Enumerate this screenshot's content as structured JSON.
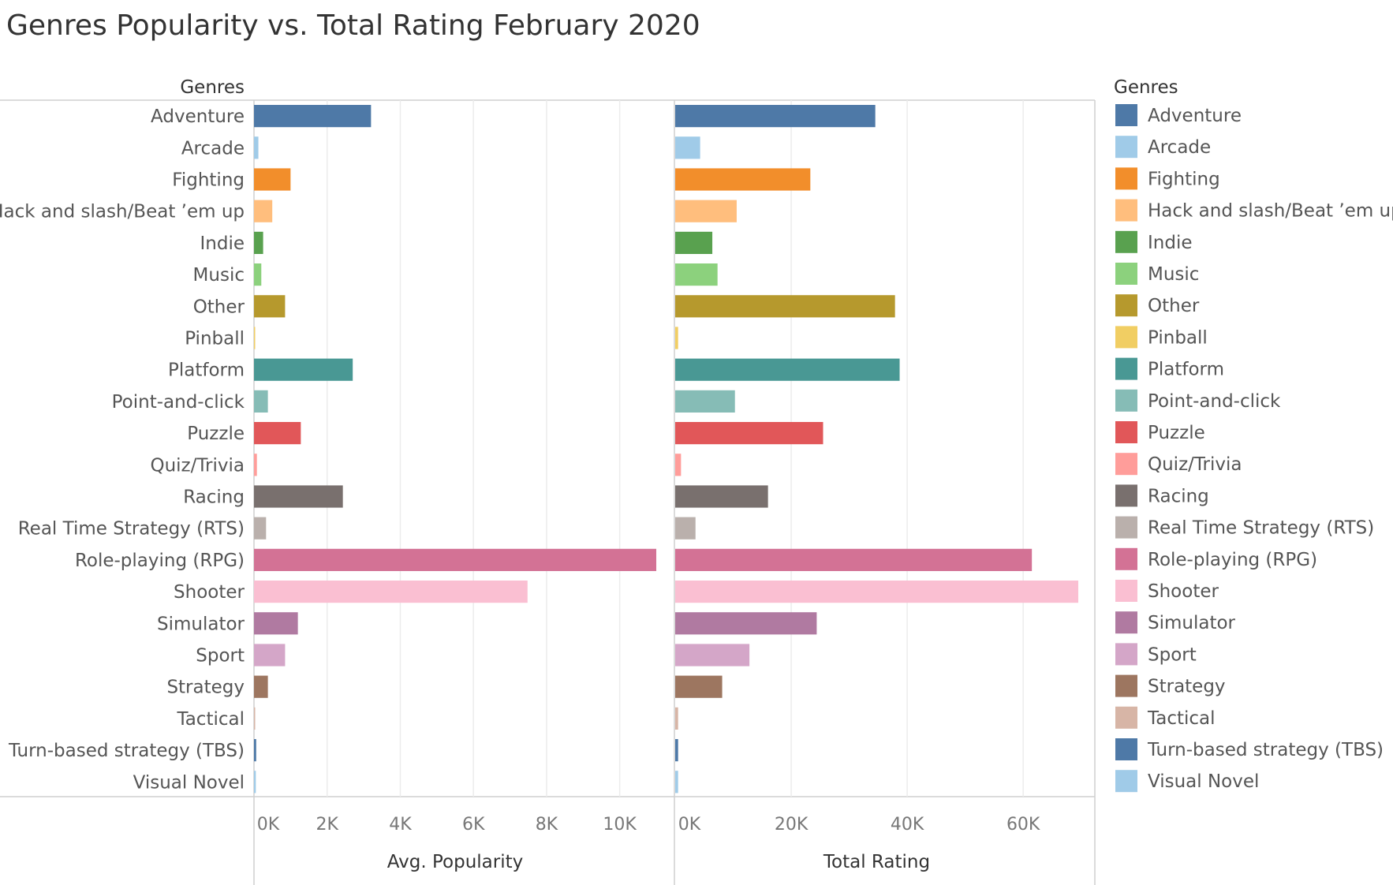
{
  "chart_data": {
    "type": "bar",
    "title": "Genres Popularity vs. Total Rating February 2020",
    "row_header": "Genres",
    "legend_title": "Genres",
    "legend_position": "right",
    "categories": [
      "Adventure",
      "Arcade",
      "Fighting",
      "Hack and slash/Beat ’em up",
      "Indie",
      "Music",
      "Other",
      "Pinball",
      "Platform",
      "Point-and-click",
      "Puzzle",
      "Quiz/Trivia",
      "Racing",
      "Real Time Strategy (RTS)",
      "Role-playing (RPG)",
      "Shooter",
      "Simulator",
      "Sport",
      "Strategy",
      "Tactical",
      "Turn-based strategy (TBS)",
      "Visual Novel"
    ],
    "colors": [
      "#4e79a7",
      "#a0cbe8",
      "#f28e2b",
      "#ffbe7d",
      "#59a14f",
      "#8cd17d",
      "#b6992d",
      "#f1ce63",
      "#499894",
      "#86bcb6",
      "#e15759",
      "#ff9d9a",
      "#79706e",
      "#bab0ac",
      "#d37295",
      "#fabfd2",
      "#b07aa1",
      "#d4a6c8",
      "#9d7660",
      "#d7b5a6",
      "#4e79a7",
      "#a0cbe8"
    ],
    "series": [
      {
        "name": "Avg. Popularity",
        "xlabel": "Avg. Popularity",
        "xlim": [
          0,
          11000
        ],
        "ticks": [
          0,
          2000,
          4000,
          6000,
          8000,
          10000
        ],
        "tick_labels": [
          "0K",
          "2K",
          "4K",
          "6K",
          "8K",
          "10K"
        ],
        "values": [
          3200,
          120,
          1000,
          500,
          250,
          200,
          850,
          30,
          2700,
          380,
          1280,
          80,
          2430,
          330,
          11000,
          7480,
          1200,
          850,
          380,
          30,
          60,
          50
        ]
      },
      {
        "name": "Total Rating",
        "xlabel": "Total Rating",
        "xlim": [
          0,
          69500
        ],
        "ticks": [
          0,
          20000,
          40000,
          60000
        ],
        "tick_labels": [
          "0K",
          "20K",
          "40K",
          "60K"
        ],
        "values": [
          34500,
          4300,
          23300,
          10600,
          6400,
          7300,
          37900,
          500,
          38700,
          10300,
          25500,
          1000,
          16000,
          3500,
          61500,
          69500,
          24400,
          12800,
          8100,
          500,
          500,
          500
        ]
      }
    ],
    "grid": true
  }
}
